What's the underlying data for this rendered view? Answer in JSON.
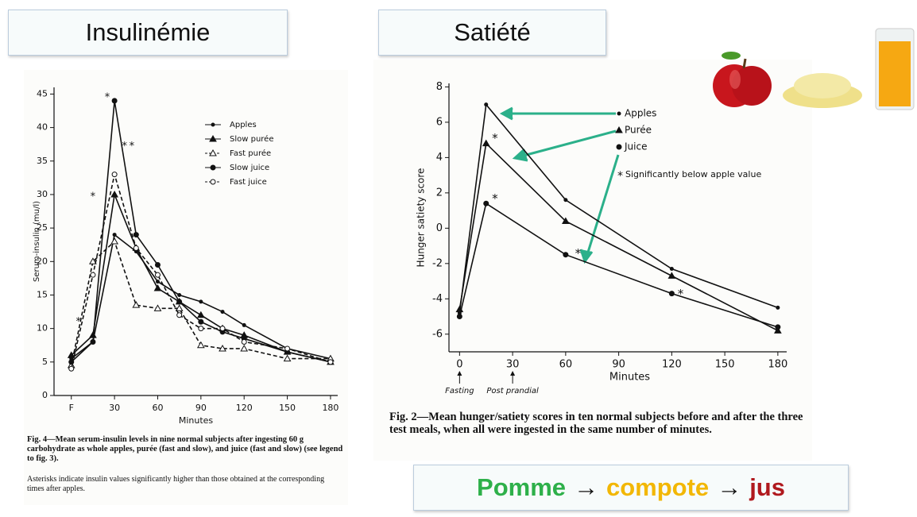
{
  "headers": [
    "Insulinémie",
    "Satiété"
  ],
  "slogan": [
    {
      "text": "Pomme",
      "color": "#2eb04a"
    },
    {
      "text": "→",
      "color": "#111111"
    },
    {
      "text": "compote",
      "color": "#f2b705"
    },
    {
      "text": "→",
      "color": "#111111"
    },
    {
      "text": "jus",
      "color": "#b0191e"
    }
  ],
  "chart_data": [
    {
      "type": "line",
      "y_label": "Serum-insulin (mu/l)",
      "x_label": "Minutes",
      "caption": "Fig. 4—Mean serum-insulin levels in nine normal subjects after ingesting 60 g carbohydrate as whole apples, purée (fast and slow), and juice (fast and slow) (see legend to fig. 3).",
      "note": "Asterisks indicate insulin values significantly higher than those obtained at the corresponding times after apples.",
      "xlim": [
        -12,
        185
      ],
      "ylim": [
        0,
        46
      ],
      "xticks": [
        {
          "value": 0,
          "label": "F"
        },
        30,
        60,
        90,
        120,
        150,
        180
      ],
      "yticks": [
        0,
        5,
        10,
        15,
        20,
        25,
        30,
        35,
        40,
        45
      ],
      "x": [
        0,
        15,
        30,
        45,
        60,
        75,
        90,
        105,
        120,
        150,
        180
      ],
      "significance_marker": "*",
      "significance_points": [
        {
          "x": 25,
          "y": 44.8
        },
        {
          "x": 37,
          "y": 37.5
        },
        {
          "x": 42,
          "y": 37.5
        },
        {
          "x": 15,
          "y": 30
        },
        {
          "x": 5,
          "y": 11.3
        }
      ],
      "series": [
        {
          "name": "Apples",
          "color": "#111111",
          "marker": "dot",
          "dashed": false,
          "values": [
            5.5,
            8,
            24,
            21.5,
            17,
            15,
            14,
            12.5,
            10.5,
            7,
            5.5
          ]
        },
        {
          "name": "Slow purée",
          "color": "#111111",
          "marker": "triangle",
          "dashed": false,
          "values": [
            6,
            9,
            30,
            22,
            16,
            14,
            12,
            10,
            9,
            6.5,
            5
          ]
        },
        {
          "name": "Fast purée",
          "color": "#111111",
          "marker": "open-triangle",
          "dashed": true,
          "values": [
            4.5,
            20,
            23,
            13.5,
            13,
            13,
            7.5,
            7,
            7,
            5.5,
            5.5
          ]
        },
        {
          "name": "Slow juice",
          "color": "#111111",
          "marker": "big-dot",
          "dashed": false,
          "values": [
            5,
            8,
            44,
            24,
            19.5,
            14,
            11,
            9.5,
            8.5,
            6.5,
            5
          ]
        },
        {
          "name": "Fast juice",
          "color": "#111111",
          "marker": "open-circle",
          "dashed": true,
          "values": [
            4,
            18,
            33,
            22,
            18,
            12,
            10,
            10,
            8,
            7,
            5
          ]
        }
      ]
    },
    {
      "type": "line",
      "y_label": "Hunger satiety score",
      "x_label": "Minutes",
      "caption": "Fig. 2—Mean hunger/satiety scores in ten normal subjects before and after the three test meals, when all were ingested in the same number of minutes.",
      "legend_note": "Significantly below apple value",
      "xlim": [
        -6,
        185
      ],
      "ylim": [
        -7,
        8.2
      ],
      "xticks": [
        0,
        30,
        60,
        90,
        120,
        150,
        180
      ],
      "yticks": [
        -6,
        -4,
        -2,
        0,
        2,
        4,
        6,
        8
      ],
      "x": [
        0,
        15,
        60,
        120,
        180
      ],
      "annotations": [
        {
          "text": "Fasting",
          "x": 0
        },
        {
          "text": "Post prandial",
          "x": 30
        }
      ],
      "significance_marker": "*",
      "significance_points": [
        {
          "x": 20,
          "y": 5.2
        },
        {
          "x": 20,
          "y": 1.8
        },
        {
          "x": 67,
          "y": -1.3
        },
        {
          "x": 125,
          "y": -3.6
        }
      ],
      "series": [
        {
          "name": "Apples",
          "color": "#111111",
          "marker": "dot",
          "dashed": false,
          "values": [
            -4.8,
            7,
            1.6,
            -2.3,
            -4.5
          ]
        },
        {
          "name": "Purée",
          "color": "#111111",
          "marker": "triangle",
          "dashed": false,
          "values": [
            -4.6,
            4.8,
            0.4,
            -2.7,
            -5.8
          ]
        },
        {
          "name": "Juice",
          "color": "#111111",
          "marker": "big-dot",
          "dashed": false,
          "values": [
            -5,
            1.4,
            -1.5,
            -3.7,
            -5.6
          ]
        }
      ]
    }
  ]
}
